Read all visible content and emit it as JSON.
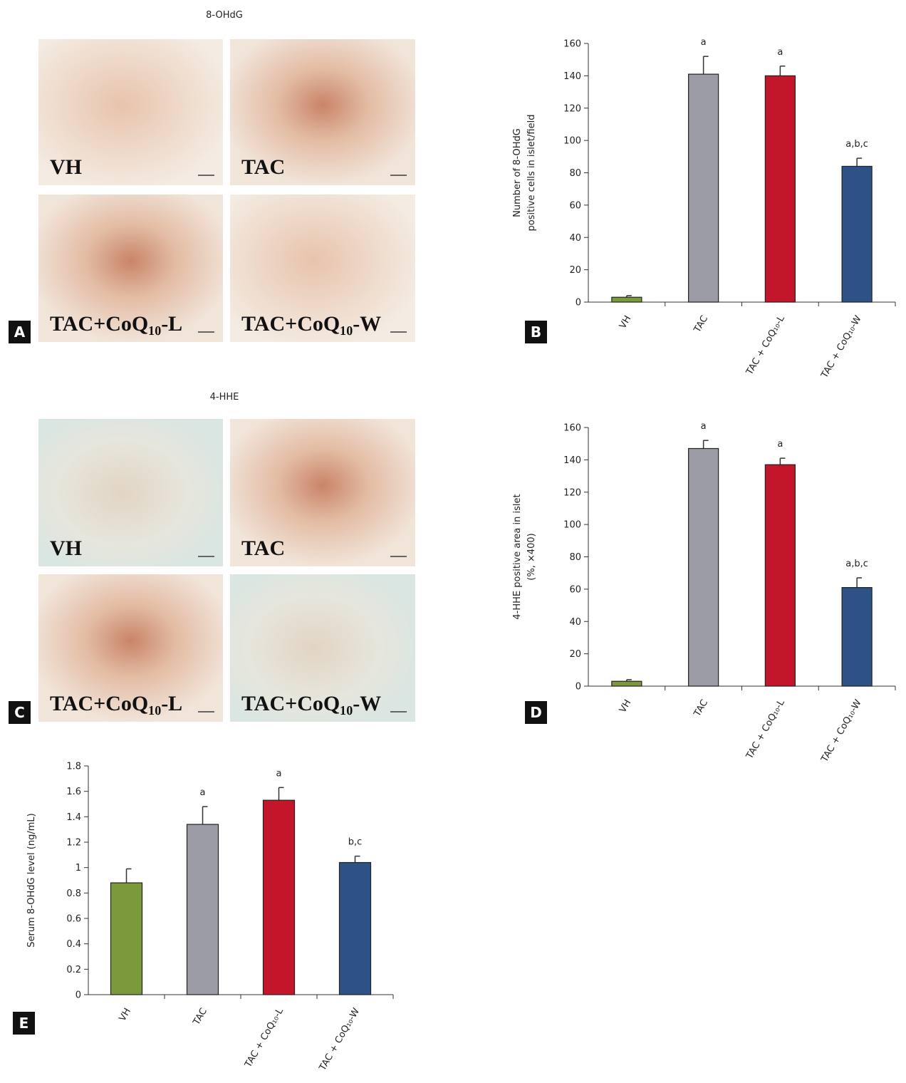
{
  "image_panels": [
    {
      "letter": "A",
      "title": "8-OHdG",
      "labels": [
        "VH",
        "TAC",
        "TAC+CoQ₁₀-L",
        "TAC+CoQ₁₀-W"
      ]
    },
    {
      "letter": "C",
      "title": "4-HHE",
      "labels": [
        "VH",
        "TAC",
        "TAC+CoQ₁₀-L",
        "TAC+CoQ₁₀-W"
      ]
    }
  ],
  "chart_data": [
    {
      "type": "bar",
      "letter": "B",
      "ylabel": [
        "Number of 8-OHdG",
        "positive cells in islet/field"
      ],
      "categories": [
        "VH",
        "TAC",
        "TAC + CoQ₁₀-L",
        "TAC + CoQ₁₀-W"
      ],
      "values": [
        3,
        141,
        140,
        84
      ],
      "errors": [
        1,
        11,
        6,
        5
      ],
      "annotations": [
        null,
        "a",
        "a",
        "a,b,c"
      ],
      "colors": [
        "#7b9a3b",
        "#9c9ca6",
        "#c3162b",
        "#2d5286"
      ],
      "ylim": [
        0,
        160
      ],
      "yticks": [
        0,
        20,
        40,
        60,
        80,
        100,
        120,
        140,
        160
      ]
    },
    {
      "type": "bar",
      "letter": "D",
      "ylabel": [
        "4-HHE positive area in islet",
        "(%, ×400)"
      ],
      "categories": [
        "VH",
        "TAC",
        "TAC + CoQ₁₀-L",
        "TAC + CoQ₁₀-W"
      ],
      "values": [
        3,
        147,
        137,
        61
      ],
      "errors": [
        1,
        5,
        4,
        6
      ],
      "annotations": [
        null,
        "a",
        "a",
        "a,b,c"
      ],
      "colors": [
        "#7b9a3b",
        "#9c9ca6",
        "#c3162b",
        "#2d5286"
      ],
      "ylim": [
        0,
        160
      ],
      "yticks": [
        0,
        20,
        40,
        60,
        80,
        100,
        120,
        140,
        160
      ]
    },
    {
      "type": "bar",
      "letter": "E",
      "ylabel": [
        "Serum 8-OHdG level (ng/mL)"
      ],
      "categories": [
        "VH",
        "TAC",
        "TAC + CoQ₁₀-L",
        "TAC + CoQ₁₀-W"
      ],
      "values": [
        0.88,
        1.34,
        1.53,
        1.04
      ],
      "errors": [
        0.11,
        0.14,
        0.1,
        0.05
      ],
      "annotations": [
        null,
        "a",
        "a",
        "b,c"
      ],
      "colors": [
        "#7b9a3b",
        "#9c9ca6",
        "#c3162b",
        "#2d5286"
      ],
      "ylim": [
        0,
        1.8
      ],
      "yticks": [
        0,
        0.2,
        0.4,
        0.6,
        0.8,
        1,
        1.2,
        1.4,
        1.6,
        1.8
      ]
    }
  ]
}
